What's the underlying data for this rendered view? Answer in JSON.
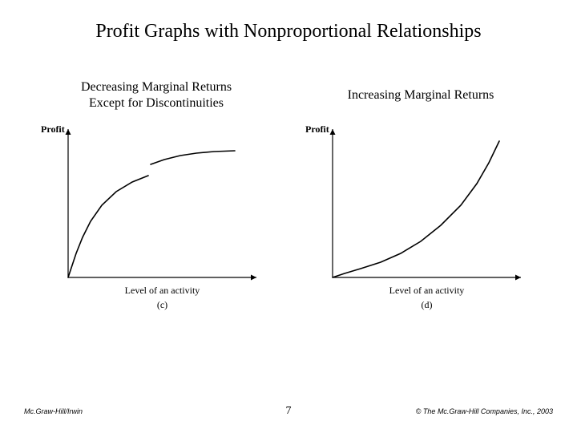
{
  "title": "Profit Graphs with Nonproportional Relationships",
  "left_chart": {
    "subtitle_line1": "Decreasing Marginal Returns",
    "subtitle_line2": "Except for Discontinuities",
    "y_axis_label": "Profit",
    "x_axis_label": "Level of an activity",
    "sub_label": "(c)",
    "type": "line-with-jump",
    "axis_color": "#000000",
    "curve_color": "#000000",
    "background_color": "#ffffff",
    "curve_width": 1.6,
    "axis_width": 1.2,
    "segments": [
      {
        "points": [
          [
            40,
            195
          ],
          [
            45,
            180
          ],
          [
            50,
            165
          ],
          [
            58,
            145
          ],
          [
            68,
            125
          ],
          [
            82,
            105
          ],
          [
            100,
            88
          ],
          [
            120,
            76
          ],
          [
            140,
            68
          ]
        ]
      },
      {
        "points": [
          [
            143,
            54
          ],
          [
            160,
            48
          ],
          [
            180,
            43
          ],
          [
            200,
            40
          ],
          [
            222,
            38
          ],
          [
            248,
            37
          ]
        ]
      }
    ],
    "xlim": [
      40,
      270
    ],
    "ylim_display": [
      195,
      20
    ],
    "arrow_size": 6
  },
  "right_chart": {
    "subtitle": "Increasing Marginal Returns",
    "y_axis_label": "Profit",
    "x_axis_label": "Level of an activity",
    "sub_label": "(d)",
    "type": "convex-line",
    "axis_color": "#000000",
    "curve_color": "#000000",
    "background_color": "#ffffff",
    "curve_width": 1.6,
    "axis_width": 1.2,
    "points": [
      [
        40,
        195
      ],
      [
        55,
        190
      ],
      [
        75,
        184
      ],
      [
        100,
        176
      ],
      [
        125,
        165
      ],
      [
        150,
        150
      ],
      [
        175,
        130
      ],
      [
        200,
        105
      ],
      [
        220,
        78
      ],
      [
        235,
        52
      ],
      [
        248,
        25
      ]
    ],
    "xlim": [
      40,
      270
    ],
    "ylim_display": [
      195,
      20
    ],
    "arrow_size": 6
  },
  "footer": {
    "left": "Mc.Graw-Hill/Irwin",
    "page": "7",
    "right": "© The Mc.Graw-Hill Companies, Inc., 2003"
  }
}
